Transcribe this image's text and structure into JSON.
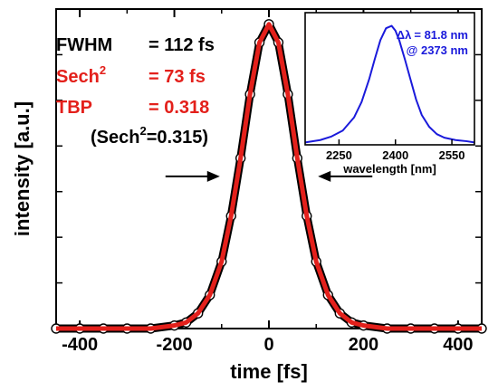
{
  "chart_data": [
    {
      "type": "line",
      "xlabel": "time [fs]",
      "ylabel": "intensity [a.u.]",
      "xlim": [
        -450,
        450
      ],
      "ylim": [
        0,
        1.05
      ],
      "xticks": [
        -400,
        -200,
        0,
        200,
        400
      ],
      "grid": false,
      "series": [
        {
          "style": "measured data (open black markers)",
          "color": "#000000",
          "x": [
            -450,
            -400,
            -350,
            -300,
            -250,
            -200,
            -175,
            -150,
            -125,
            -100,
            -80,
            -60,
            -40,
            -20,
            0,
            20,
            40,
            60,
            80,
            100,
            125,
            150,
            175,
            200,
            250,
            300,
            350,
            400,
            450
          ],
          "y": [
            0.0,
            0.0,
            0.0,
            0.0,
            0.0,
            0.01,
            0.02,
            0.05,
            0.11,
            0.22,
            0.37,
            0.56,
            0.77,
            0.94,
            1.0,
            0.94,
            0.77,
            0.56,
            0.37,
            0.22,
            0.11,
            0.05,
            0.02,
            0.01,
            0.0,
            0.0,
            0.0,
            0.0,
            0.0
          ]
        },
        {
          "style": "sech2 fit (red line)",
          "color": "#e3201b",
          "x": [
            -450,
            -400,
            -350,
            -300,
            -250,
            -200,
            -175,
            -150,
            -125,
            -100,
            -80,
            -60,
            -40,
            -20,
            0,
            20,
            40,
            60,
            80,
            100,
            125,
            150,
            175,
            200,
            250,
            300,
            350,
            400,
            450
          ],
          "y": [
            0.0,
            0.0,
            0.0,
            0.0,
            0.0,
            0.01,
            0.02,
            0.05,
            0.11,
            0.22,
            0.37,
            0.56,
            0.77,
            0.94,
            1.0,
            0.94,
            0.77,
            0.56,
            0.37,
            0.22,
            0.11,
            0.05,
            0.02,
            0.01,
            0.0,
            0.0,
            0.0,
            0.0,
            0.0
          ]
        }
      ],
      "annotations": [
        {
          "label": "FWHM",
          "value": "= 112 fs",
          "color": "#000000"
        },
        {
          "label": "Sech",
          "sup": "2",
          "value": "= 73 fs",
          "color": "#e3201b"
        },
        {
          "label": "TBP",
          "value": "= 0.318",
          "color": "#e3201b"
        },
        {
          "pre": "(Sech",
          "sup": "2",
          "post": "=0.315)",
          "color": "#000000"
        }
      ],
      "fwhm_arrows": {
        "y": 0.5,
        "left_x": -100,
        "right_x": 100
      }
    },
    {
      "type": "line",
      "inset": true,
      "xlabel": "wavelength [nm]",
      "xticks": [
        2250,
        2400,
        2550
      ],
      "xlim": [
        2160,
        2610
      ],
      "ylim": [
        0,
        1.05
      ],
      "series": [
        {
          "color": "#1a1adb",
          "x": [
            2160,
            2200,
            2230,
            2260,
            2290,
            2310,
            2330,
            2345,
            2360,
            2375,
            2390,
            2400,
            2410,
            2425,
            2440,
            2455,
            2470,
            2490,
            2510,
            2530,
            2560,
            2590,
            2610
          ],
          "y": [
            0.02,
            0.04,
            0.07,
            0.12,
            0.23,
            0.36,
            0.55,
            0.72,
            0.88,
            0.98,
            1.0,
            0.96,
            0.88,
            0.72,
            0.55,
            0.38,
            0.25,
            0.15,
            0.09,
            0.06,
            0.04,
            0.03,
            0.02
          ]
        }
      ],
      "annotations": [
        {
          "symbol": "Δλ",
          "text": "= 81.8 nm",
          "color": "#1a1adb"
        },
        {
          "text": "@ 2373 nm",
          "color": "#1a1adb"
        }
      ]
    }
  ]
}
